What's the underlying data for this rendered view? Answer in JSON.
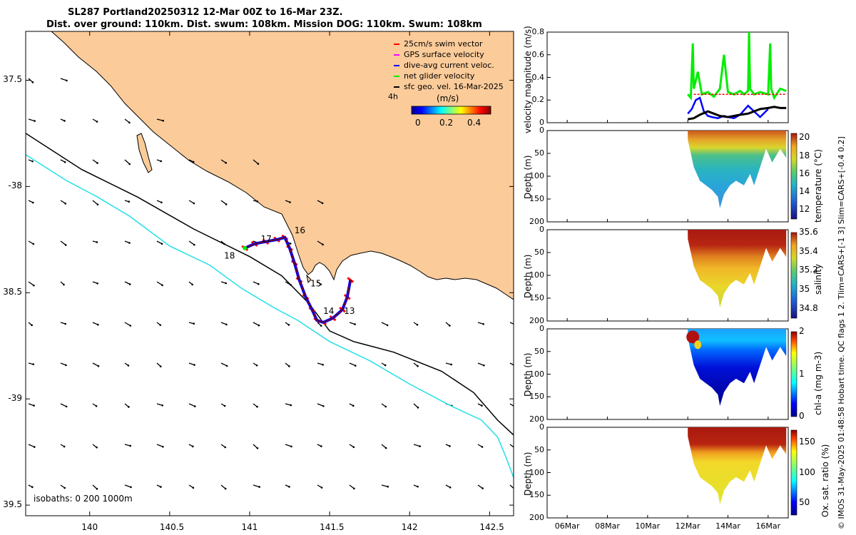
{
  "header": {
    "title_line1": "SL287 Portland20250312 12-Mar 00Z to 16-Mar 23Z.",
    "title_line2": "Dist. over ground: 110km. Dist. swum: 108km. Mission DOG: 110km. Swum: 108km"
  },
  "colors": {
    "land": "#fbcb9a",
    "sea": "#ffffff",
    "isobath_200": "#000000",
    "isobath_1000": "#22e0e8",
    "swim_vector": "#ff0000",
    "gps_velocity": "#ff00ff",
    "current_vector": "#0000ff",
    "net_velocity": "#00ee00",
    "geostrophic": "#000000"
  },
  "chart_data": [
    {
      "id": "map",
      "type": "scatter",
      "title": "SL287 Portland20250312 12-Mar 00Z to 16-Mar 23Z.",
      "xlim": [
        139.6,
        142.65
      ],
      "ylim": [
        -39.55,
        -37.27
      ],
      "xticks": [
        140,
        140.5,
        141,
        141.5,
        142,
        142.5
      ],
      "xtick_labels": [
        "140",
        "140.5",
        "141",
        "141.5",
        "142",
        "142.5"
      ],
      "yticks": [
        -37.5,
        -38,
        -38.5,
        -39,
        -39.5
      ],
      "ytick_labels": [
        "37.5",
        "-38",
        "38.5",
        "-39",
        "39.5"
      ],
      "legend": [
        "25cm/s swim vector",
        "GPS surface velocity",
        "dive-avg current veloc.",
        "net glider velocity",
        "sfc geo. vel. 16-Mar-2025"
      ],
      "legend_note": "4h",
      "colorbar": {
        "label": "(m/s)",
        "range": [
          0,
          0.5
        ],
        "ticks": [
          "0",
          "0.2",
          "0.4"
        ]
      },
      "isobath_note": "isobaths: 0   200  1000m",
      "track": [
        [
          141.63,
          -38.44
        ],
        [
          141.61,
          -38.52
        ],
        [
          141.58,
          -38.58
        ],
        [
          141.52,
          -38.62
        ],
        [
          141.46,
          -38.64
        ],
        [
          141.42,
          -38.63
        ],
        [
          141.39,
          -38.58
        ],
        [
          141.35,
          -38.52
        ],
        [
          141.31,
          -38.44
        ],
        [
          141.28,
          -38.36
        ],
        [
          141.25,
          -38.29
        ],
        [
          141.22,
          -38.24
        ],
        [
          141.17,
          -38.25
        ],
        [
          141.1,
          -38.26
        ],
        [
          141.03,
          -38.27
        ],
        [
          140.97,
          -38.29
        ]
      ],
      "track_day_labels": [
        {
          "text": "13",
          "lon": 141.59,
          "lat": -38.6
        },
        {
          "text": "14",
          "lon": 141.46,
          "lat": -38.6
        },
        {
          "text": "15",
          "lon": 141.38,
          "lat": -38.47
        },
        {
          "text": "16",
          "lon": 141.28,
          "lat": -38.22
        },
        {
          "text": "17",
          "lon": 141.07,
          "lat": -38.26
        },
        {
          "text": "18",
          "lon": 140.84,
          "lat": -38.34
        }
      ],
      "isobath_200m": [
        [
          139.6,
          -37.75
        ],
        [
          139.95,
          -37.92
        ],
        [
          140.3,
          -38.05
        ],
        [
          140.65,
          -38.2
        ],
        [
          141.0,
          -38.33
        ],
        [
          141.2,
          -38.42
        ],
        [
          141.37,
          -38.55
        ],
        [
          141.5,
          -38.68
        ],
        [
          141.65,
          -38.73
        ],
        [
          141.9,
          -38.78
        ],
        [
          142.2,
          -38.87
        ],
        [
          142.4,
          -38.97
        ],
        [
          142.55,
          -39.1
        ],
        [
          142.65,
          -39.17
        ]
      ],
      "isobath_1000m": [
        [
          139.6,
          -37.85
        ],
        [
          139.85,
          -37.97
        ],
        [
          140.05,
          -38.05
        ],
        [
          140.25,
          -38.14
        ],
        [
          140.5,
          -38.28
        ],
        [
          140.75,
          -38.37
        ],
        [
          140.95,
          -38.48
        ],
        [
          141.15,
          -38.57
        ],
        [
          141.3,
          -38.63
        ],
        [
          141.5,
          -38.73
        ],
        [
          141.75,
          -38.82
        ],
        [
          142.0,
          -38.93
        ],
        [
          142.25,
          -39.03
        ],
        [
          142.45,
          -39.1
        ],
        [
          142.55,
          -39.18
        ],
        [
          142.6,
          -39.27
        ],
        [
          142.65,
          -39.37
        ]
      ]
    },
    {
      "id": "velocity",
      "type": "line",
      "ylabel": "velocity magnitude (m/s)",
      "ylim": [
        0,
        0.8
      ],
      "yticks": [
        "0",
        "0.2",
        "0.4",
        "0.6",
        "0.8"
      ],
      "series": [
        {
          "name": "net glider velocity",
          "x": [
            12.0,
            12.15,
            12.25,
            12.3,
            12.5,
            12.7,
            13.0,
            13.3,
            13.6,
            13.8,
            14.0,
            14.3,
            14.6,
            14.8,
            15.0,
            15.05,
            15.1,
            15.3,
            15.6,
            16.0,
            16.1,
            16.15,
            16.3,
            16.6,
            16.9
          ],
          "y": [
            0.25,
            0.22,
            0.7,
            0.3,
            0.45,
            0.25,
            0.27,
            0.23,
            0.3,
            0.6,
            0.27,
            0.25,
            0.28,
            0.25,
            0.28,
            0.8,
            0.3,
            0.25,
            0.27,
            0.25,
            0.7,
            0.3,
            0.22,
            0.3,
            0.28
          ]
        },
        {
          "name": "dive-avg current veloc.",
          "x": [
            12.0,
            12.2,
            12.4,
            12.6,
            12.8,
            13.0,
            13.2,
            13.5,
            13.8,
            14.0,
            14.3,
            14.6,
            15.0,
            15.3,
            15.6,
            16.0
          ],
          "y": [
            0.08,
            0.12,
            0.2,
            0.22,
            0.1,
            0.06,
            0.05,
            0.04,
            0.06,
            0.05,
            0.04,
            0.07,
            0.15,
            0.1,
            0.05,
            0.12
          ]
        },
        {
          "name": "sfc geo. vel.",
          "x": [
            12.0,
            12.3,
            12.6,
            13.0,
            13.3,
            13.6,
            14.0,
            14.3,
            14.6,
            15.0,
            15.3,
            15.6,
            16.0,
            16.3,
            16.6,
            16.9
          ],
          "y": [
            0.03,
            0.04,
            0.07,
            0.1,
            0.08,
            0.06,
            0.05,
            0.06,
            0.07,
            0.08,
            0.1,
            0.12,
            0.13,
            0.14,
            0.13,
            0.13
          ]
        },
        {
          "name": "swim vector",
          "x": [
            12.3,
            16.9
          ],
          "y": [
            0.25,
            0.25
          ]
        }
      ]
    },
    {
      "id": "temperature",
      "type": "heatmap",
      "ylabel": "Depth (m)",
      "colorbar_label": "temperature (°C)",
      "clim": [
        11,
        20.5
      ],
      "colorbar_ticks": [
        "20",
        "18",
        "16",
        "14",
        "12"
      ],
      "ylim": [
        0,
        200
      ],
      "yticks": [
        "0",
        "50",
        "100",
        "150",
        "200"
      ],
      "bottom_depth": [
        [
          12.0,
          20
        ],
        [
          12.3,
          80
        ],
        [
          12.6,
          110
        ],
        [
          12.9,
          120
        ],
        [
          13.2,
          130
        ],
        [
          13.5,
          145
        ],
        [
          13.6,
          170
        ],
        [
          13.8,
          140
        ],
        [
          14.1,
          120
        ],
        [
          14.4,
          110
        ],
        [
          14.8,
          120
        ],
        [
          15.1,
          95
        ],
        [
          15.3,
          120
        ],
        [
          15.6,
          80
        ],
        [
          15.9,
          40
        ],
        [
          16.2,
          70
        ],
        [
          16.6,
          40
        ],
        [
          16.9,
          60
        ]
      ],
      "thermocline_depth": 40
    },
    {
      "id": "salinity",
      "type": "heatmap",
      "ylabel": "Depth (m)",
      "colorbar_label": "salinity",
      "clim": [
        34.7,
        35.6
      ],
      "colorbar_ticks": [
        "35.6",
        "35.4",
        "35.2",
        "35",
        "34.8"
      ],
      "ylim": [
        0,
        200
      ],
      "yticks": [
        "0",
        "50",
        "100",
        "150",
        "200"
      ]
    },
    {
      "id": "chla",
      "type": "heatmap",
      "ylabel": "Depth (m)",
      "colorbar_label": "chl-a (mg m-3)",
      "clim": [
        0,
        2
      ],
      "colorbar_ticks": [
        "2",
        "1",
        "0"
      ],
      "ylim": [
        0,
        200
      ],
      "yticks": [
        "0",
        "50",
        "100",
        "150",
        "200"
      ]
    },
    {
      "id": "oxygen",
      "type": "heatmap",
      "ylabel": "Depth (m)",
      "colorbar_label": "Ox. sat. ratio (%)",
      "clim": [
        30,
        170
      ],
      "colorbar_ticks": [
        "150",
        "100",
        "50"
      ],
      "ylim": [
        0,
        200
      ],
      "yticks": [
        "0",
        "50",
        "100",
        "150",
        "200"
      ],
      "xtick_labels": [
        "06Mar",
        "08Mar",
        "10Mar",
        "12Mar",
        "14Mar",
        "16Mar"
      ],
      "xrange_days": [
        5.0,
        17.0
      ]
    }
  ],
  "side_note": "© IMOS 31-May-2025 01:48:58 Hobart time. QC flags 1  2. Tlim=CARS+[-1 3] Slim=CARS+[-0.4 0.2]"
}
